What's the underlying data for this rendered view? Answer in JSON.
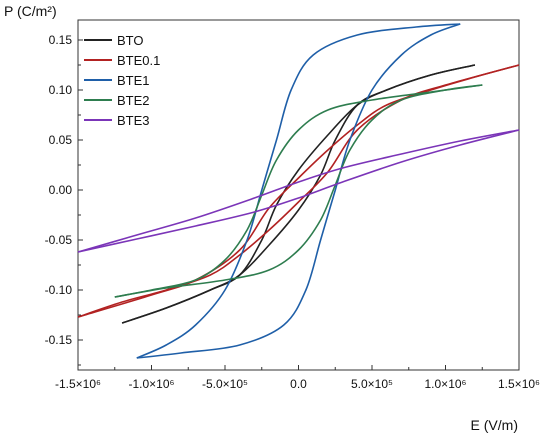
{
  "chart_data": {
    "type": "line",
    "xlabel": "E (V/m)",
    "ylabel": "P (C/m²)",
    "xlim": [
      -1500000,
      1500000
    ],
    "ylim": [
      -0.18,
      0.17
    ],
    "x_ticks": [
      {
        "value": -1500000,
        "label": "-1.5×10⁶"
      },
      {
        "value": -1000000,
        "label": "-1.0×10⁶"
      },
      {
        "value": -500000,
        "label": "-5.0×10⁵"
      },
      {
        "value": 0,
        "label": "0.0"
      },
      {
        "value": 500000,
        "label": "5.0×10⁵"
      },
      {
        "value": 1000000,
        "label": "1.0×10⁶"
      },
      {
        "value": 1500000,
        "label": "1.5×10⁶"
      }
    ],
    "y_ticks": [
      {
        "value": 0.15,
        "label": "0.15"
      },
      {
        "value": 0.1,
        "label": "0.10"
      },
      {
        "value": 0.05,
        "label": "0.05"
      },
      {
        "value": 0.0,
        "label": "0.00"
      },
      {
        "value": -0.05,
        "label": "-0.05"
      },
      {
        "value": -0.1,
        "label": "-0.10"
      },
      {
        "value": -0.15,
        "label": "-0.15"
      }
    ],
    "legend_position": "top-left",
    "grid": false,
    "series": [
      {
        "name": "BTO",
        "color": "#222222",
        "Emax": 1200000,
        "loops": {
          "upper": [
            [
              -1200000,
              -0.133
            ],
            [
              -900000,
              -0.118
            ],
            [
              -600000,
              -0.1
            ],
            [
              -400000,
              -0.085
            ],
            [
              -200000,
              -0.055
            ],
            [
              0,
              -0.02
            ],
            [
              150000,
              0.015
            ],
            [
              250000,
              0.05
            ],
            [
              400000,
              0.085
            ],
            [
              600000,
              0.1
            ],
            [
              900000,
              0.115
            ],
            [
              1200000,
              0.125
            ]
          ],
          "lower": [
            [
              1200000,
              0.125
            ],
            [
              900000,
              0.115
            ],
            [
              600000,
              0.1
            ],
            [
              400000,
              0.085
            ],
            [
              200000,
              0.055
            ],
            [
              0,
              0.02
            ],
            [
              -150000,
              -0.015
            ],
            [
              -250000,
              -0.05
            ],
            [
              -400000,
              -0.085
            ],
            [
              -600000,
              -0.1
            ],
            [
              -900000,
              -0.118
            ],
            [
              -1200000,
              -0.133
            ]
          ]
        }
      },
      {
        "name": "BTE0.1",
        "color": "#b22222",
        "Emax": 1500000,
        "loops": {
          "upper": [
            [
              -1500000,
              -0.127
            ],
            [
              -1200000,
              -0.112
            ],
            [
              -900000,
              -0.1
            ],
            [
              -600000,
              -0.085
            ],
            [
              -400000,
              -0.065
            ],
            [
              -200000,
              -0.04
            ],
            [
              0,
              -0.012
            ],
            [
              200000,
              0.018
            ],
            [
              400000,
              0.06
            ],
            [
              700000,
              0.09
            ],
            [
              1000000,
              0.105
            ],
            [
              1500000,
              0.125
            ]
          ],
          "lower": [
            [
              1500000,
              0.125
            ],
            [
              1200000,
              0.113
            ],
            [
              900000,
              0.1
            ],
            [
              600000,
              0.085
            ],
            [
              400000,
              0.065
            ],
            [
              200000,
              0.04
            ],
            [
              0,
              0.012
            ],
            [
              -200000,
              -0.018
            ],
            [
              -400000,
              -0.06
            ],
            [
              -700000,
              -0.09
            ],
            [
              -1000000,
              -0.105
            ],
            [
              -1500000,
              -0.127
            ]
          ]
        }
      },
      {
        "name": "BTE1",
        "color": "#1f5fa8",
        "Emax": 1100000,
        "loops": {
          "upper": [
            [
              -1100000,
              -0.168
            ],
            [
              -900000,
              -0.155
            ],
            [
              -700000,
              -0.135
            ],
            [
              -500000,
              -0.1
            ],
            [
              -350000,
              -0.05
            ],
            [
              -250000,
              0.0
            ],
            [
              -150000,
              0.05
            ],
            [
              -50000,
              0.1
            ],
            [
              100000,
              0.135
            ],
            [
              400000,
              0.155
            ],
            [
              800000,
              0.163
            ],
            [
              1100000,
              0.166
            ]
          ],
          "lower": [
            [
              1100000,
              0.166
            ],
            [
              900000,
              0.155
            ],
            [
              700000,
              0.135
            ],
            [
              500000,
              0.1
            ],
            [
              350000,
              0.05
            ],
            [
              250000,
              0.0
            ],
            [
              150000,
              -0.05
            ],
            [
              50000,
              -0.1
            ],
            [
              -100000,
              -0.135
            ],
            [
              -400000,
              -0.155
            ],
            [
              -800000,
              -0.163
            ],
            [
              -1100000,
              -0.168
            ]
          ]
        }
      },
      {
        "name": "BTE2",
        "color": "#2e7d4f",
        "Emax": 1250000,
        "loops": {
          "upper": [
            [
              -1250000,
              -0.107
            ],
            [
              -1000000,
              -0.1
            ],
            [
              -700000,
              -0.09
            ],
            [
              -500000,
              -0.07
            ],
            [
              -350000,
              -0.04
            ],
            [
              -250000,
              -0.005
            ],
            [
              -150000,
              0.03
            ],
            [
              0,
              0.06
            ],
            [
              200000,
              0.08
            ],
            [
              500000,
              0.09
            ],
            [
              900000,
              0.098
            ],
            [
              1250000,
              0.105
            ]
          ],
          "lower": [
            [
              1250000,
              0.105
            ],
            [
              1000000,
              0.1
            ],
            [
              700000,
              0.09
            ],
            [
              500000,
              0.07
            ],
            [
              350000,
              0.04
            ],
            [
              250000,
              0.005
            ],
            [
              150000,
              -0.03
            ],
            [
              0,
              -0.06
            ],
            [
              -200000,
              -0.08
            ],
            [
              -500000,
              -0.09
            ],
            [
              -900000,
              -0.098
            ],
            [
              -1250000,
              -0.107
            ]
          ]
        }
      },
      {
        "name": "BTE3",
        "color": "#7b35b8",
        "Emax": 1500000,
        "loops": {
          "upper": [
            [
              -1500000,
              -0.062
            ],
            [
              -1100000,
              -0.045
            ],
            [
              -700000,
              -0.028
            ],
            [
              -300000,
              -0.008
            ],
            [
              0,
              0.008
            ],
            [
              300000,
              0.022
            ],
            [
              700000,
              0.036
            ],
            [
              1100000,
              0.049
            ],
            [
              1500000,
              0.06
            ]
          ],
          "lower": [
            [
              1500000,
              0.06
            ],
            [
              1100000,
              0.045
            ],
            [
              700000,
              0.028
            ],
            [
              300000,
              0.008
            ],
            [
              0,
              -0.008
            ],
            [
              -300000,
              -0.022
            ],
            [
              -700000,
              -0.036
            ],
            [
              -1100000,
              -0.049
            ],
            [
              -1500000,
              -0.062
            ]
          ]
        }
      }
    ]
  }
}
